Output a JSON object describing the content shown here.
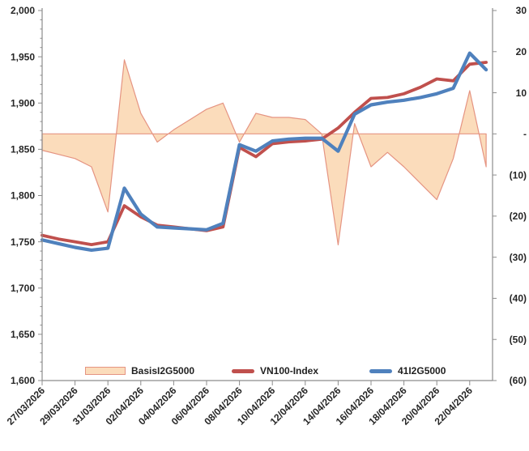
{
  "colors": {
    "area_fill": "#FBDCBB",
    "area_line": "#E59482",
    "red_line": "#C0504D",
    "blue_line": "#4F81BD",
    "axis": "#8C8C8C",
    "tick_text": "#262626"
  },
  "legend": {
    "position": "bottom"
  },
  "chart_data": {
    "type": "line",
    "title": "",
    "grid": false,
    "legend_position": "bottom",
    "points_per_tick": 2,
    "x_tick_labels": [
      "27/03/2026",
      "29/03/2026",
      "31/03/2026",
      "02/04/2026",
      "04/04/2026",
      "06/04/2026",
      "08/04/2026",
      "10/04/2026",
      "12/04/2026",
      "14/04/2026",
      "16/04/2026",
      "18/04/2026",
      "20/04/2026",
      "22/04/2026"
    ],
    "left_axis": {
      "min": 1600,
      "max": 2000,
      "step": 50,
      "minor_step": 10,
      "tick_labels": [
        "2,000",
        "1,950",
        "1,900",
        "1,850",
        "1,800",
        "1,750",
        "1,700",
        "1,650",
        "1,600"
      ]
    },
    "right_axis": {
      "min": -60,
      "max": 30,
      "step": 10,
      "tick_labels": [
        "30",
        "20",
        "10",
        "-",
        "(10)",
        "(20)",
        "(30)",
        "(40)",
        "(50)",
        "(60)"
      ]
    },
    "series": [
      {
        "name": "BasisI2G5000",
        "type": "area",
        "axis": "right",
        "values": [
          -4,
          -5,
          -6,
          -8,
          -19,
          18,
          5,
          -2,
          1,
          3.5,
          6,
          7.5,
          -2,
          5,
          4,
          4,
          3.5,
          0,
          -27,
          2.5,
          -8,
          -4.5,
          -8,
          -12,
          -16,
          -6,
          10.5,
          -8
        ]
      },
      {
        "name": "VN100-Index",
        "type": "line",
        "axis": "left",
        "values": [
          1757,
          1753,
          1750,
          1747,
          1750,
          1789,
          1777,
          1768,
          1766,
          1764,
          1762,
          1766,
          1852,
          1842,
          1856,
          1858,
          1859,
          1861,
          1873,
          1890,
          1905,
          1906,
          1910,
          1917,
          1926,
          1924,
          1942,
          1944
        ]
      },
      {
        "name": "41I2G5000",
        "type": "line",
        "axis": "left",
        "values": [
          1752,
          1748,
          1744,
          1741,
          1743,
          1808,
          1780,
          1766,
          1765,
          1764,
          1763,
          1770,
          1855,
          1848,
          1859,
          1861,
          1862,
          1862,
          1848,
          1888,
          1898,
          1901,
          1903,
          1906,
          1910,
          1916,
          1954,
          1936
        ]
      }
    ]
  }
}
